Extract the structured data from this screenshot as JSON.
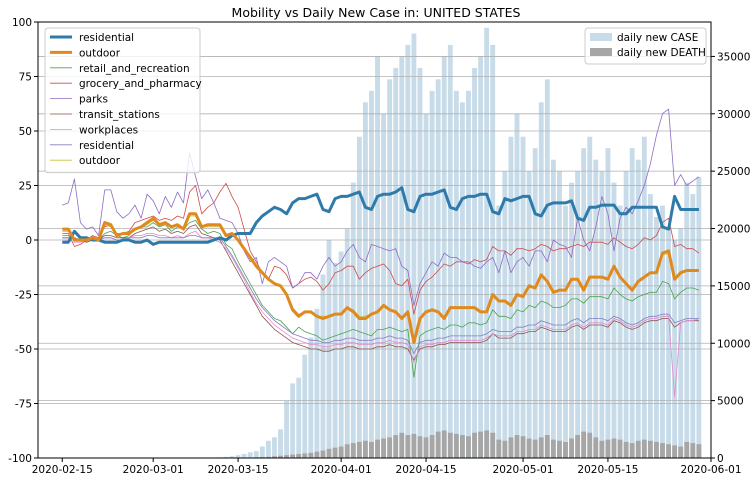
{
  "chart_data": {
    "type": "line",
    "title": "Mobility vs Daily New Case in: UNITED STATES",
    "xlabel": "",
    "ylabel_left": "",
    "ylabel_right": "",
    "x_start": "2020-02-15",
    "x_end": "2020-05-29",
    "xlim": [
      "2020-02-11",
      "2020-06-01"
    ],
    "x_tick_labels": [
      "2020-02-15",
      "2020-03-01",
      "2020-03-15",
      "2020-04-01",
      "2020-04-15",
      "2020-05-01",
      "2020-05-15",
      "2020-06-01"
    ],
    "y_left": {
      "ylim": [
        -100,
        100
      ],
      "ticks": [
        -100,
        -75,
        -50,
        -25,
        0,
        25,
        50,
        75,
        100
      ]
    },
    "y_right": {
      "ylim": [
        0,
        38000
      ],
      "ticks": [
        0,
        5000,
        10000,
        15000,
        20000,
        25000,
        30000,
        35000
      ]
    },
    "grid": true,
    "legend_left": {
      "placement": "top-left",
      "entries": [
        "residential",
        "outdoor",
        "retail_and_recreation",
        "grocery_and_pharmacy",
        "parks",
        "transit_stations",
        "workplaces",
        "residential",
        "outdoor"
      ]
    },
    "legend_right": {
      "placement": "top-right",
      "entries": [
        "daily new CASE",
        "daily new DEATH"
      ]
    },
    "colors": {
      "residential_bold": "#2e7bab",
      "outdoor_bold": "#e08a1e",
      "retail_and_recreation": "#4ca24c",
      "grocery_and_pharmacy": "#d04a4a",
      "parks": "#8e6cc4",
      "transit_stations": "#8c564b",
      "workplaces": "#e48ad0",
      "residential": "#7f7fbf",
      "outdoor": "#c8bf3a",
      "case": "#c7dbe9",
      "death": "#a6a6a6"
    },
    "series": [
      {
        "name": "residential",
        "axis": "left",
        "values": [
          -1,
          -1,
          4,
          1,
          1,
          0,
          0,
          -1,
          -1,
          -1,
          0,
          0,
          -1,
          -1,
          0,
          -2,
          -1,
          -1,
          -1,
          -1,
          -1,
          -1,
          -1,
          -1,
          -1,
          0,
          1,
          0,
          2,
          3,
          3,
          3,
          8,
          11,
          13,
          15,
          14,
          12,
          17,
          19,
          19,
          20,
          21,
          14,
          13,
          19,
          20,
          20,
          21,
          22,
          15,
          14,
          20,
          21,
          21,
          22,
          24,
          14,
          13,
          20,
          21,
          21,
          22,
          23,
          15,
          14,
          19,
          20,
          20,
          21,
          21,
          13,
          12,
          19,
          18,
          19,
          20,
          20,
          12,
          11,
          16,
          17,
          17,
          17,
          18,
          10,
          9,
          15,
          15,
          16,
          16,
          16,
          12,
          12,
          15,
          15,
          15,
          15,
          15,
          6,
          5,
          20,
          14,
          14,
          14,
          14
        ]
      },
      {
        "name": "outdoor",
        "axis": "left",
        "values": [
          5,
          5,
          0,
          0,
          0,
          1,
          0,
          8,
          7,
          2,
          3,
          3,
          5,
          6,
          8,
          10,
          7,
          8,
          6,
          7,
          5,
          12,
          12,
          6,
          7,
          7,
          7,
          2,
          3,
          0,
          -4,
          -8,
          -12,
          -15,
          -18,
          -20,
          -21,
          -25,
          -32,
          -35,
          -33,
          -33,
          -35,
          -36,
          -35,
          -34,
          -34,
          -31,
          -33,
          -36,
          -36,
          -34,
          -33,
          -30,
          -32,
          -33,
          -36,
          -33,
          -47,
          -36,
          -33,
          -32,
          -33,
          -36,
          -31,
          -31,
          -31,
          -31,
          -31,
          -33,
          -33,
          -25,
          -28,
          -28,
          -30,
          -25,
          -26,
          -21,
          -22,
          -16,
          -19,
          -24,
          -23,
          -23,
          -18,
          -18,
          -23,
          -17,
          -17,
          -17,
          -18,
          -12,
          -17,
          -20,
          -23,
          -19,
          -17,
          -15,
          -15,
          -6,
          -5,
          -18,
          -15,
          -14,
          -14,
          -14
        ]
      },
      {
        "name": "retail_and_recreation",
        "axis": "left",
        "values": [
          2,
          2,
          0,
          0,
          -1,
          0,
          0,
          3,
          4,
          2,
          1,
          2,
          5,
          6,
          6,
          8,
          6,
          7,
          4,
          6,
          5,
          8,
          9,
          5,
          3,
          4,
          3,
          -2,
          -4,
          -10,
          -15,
          -20,
          -25,
          -30,
          -33,
          -36,
          -37,
          -40,
          -43,
          -40,
          -42,
          -43,
          -44,
          -46,
          -45,
          -44,
          -43,
          -42,
          -41,
          -42,
          -43,
          -44,
          -41,
          -41,
          -40,
          -41,
          -42,
          -41,
          -63,
          -44,
          -42,
          -41,
          -40,
          -41,
          -39,
          -39,
          -40,
          -38,
          -38,
          -39,
          -38,
          -32,
          -35,
          -35,
          -36,
          -32,
          -33,
          -30,
          -31,
          -28,
          -29,
          -31,
          -31,
          -30,
          -27,
          -27,
          -29,
          -26,
          -26,
          -26,
          -27,
          -22,
          -25,
          -27,
          -28,
          -26,
          -25,
          -24,
          -24,
          -19,
          -20,
          -27,
          -24,
          -22,
          -22,
          -23
        ]
      },
      {
        "name": "grocery_and_pharmacy",
        "axis": "left",
        "values": [
          3,
          3,
          -3,
          -2,
          0,
          2,
          1,
          6,
          7,
          3,
          3,
          4,
          8,
          9,
          10,
          11,
          9,
          10,
          9,
          11,
          10,
          22,
          25,
          12,
          15,
          17,
          22,
          26,
          20,
          15,
          5,
          -5,
          -10,
          -15,
          -18,
          -12,
          -13,
          -16,
          -22,
          -20,
          -18,
          -17,
          -19,
          -23,
          -20,
          -15,
          -14,
          -12,
          -12,
          -18,
          -15,
          -13,
          -12,
          -11,
          -14,
          -20,
          -21,
          -18,
          -34,
          -23,
          -19,
          -17,
          -14,
          -11,
          -12,
          -10,
          -10,
          -11,
          -9,
          -10,
          -9,
          -3,
          -5,
          -5,
          -7,
          -4,
          -4,
          -5,
          -4,
          -2,
          -3,
          -5,
          -4,
          -4,
          -3,
          -2,
          -3,
          -1,
          -1,
          -1,
          -2,
          1,
          -1,
          -3,
          -4,
          -2,
          1,
          0,
          2,
          8,
          10,
          -3,
          -2,
          -4,
          -4,
          -6
        ]
      },
      {
        "name": "parks",
        "axis": "left",
        "values": [
          16,
          17,
          28,
          8,
          5,
          6,
          2,
          23,
          23,
          13,
          10,
          12,
          16,
          10,
          21,
          18,
          12,
          20,
          15,
          22,
          17,
          40,
          29,
          19,
          23,
          17,
          10,
          9,
          8,
          3,
          -5,
          -10,
          -8,
          -20,
          -10,
          -8,
          -10,
          -12,
          -22,
          -20,
          -15,
          -15,
          -18,
          -12,
          -8,
          -12,
          -10,
          -5,
          -2,
          -8,
          -10,
          -2,
          -3,
          -4,
          -5,
          -4,
          -12,
          -14,
          -30,
          -20,
          -15,
          -10,
          -12,
          -6,
          -8,
          -8,
          -10,
          -10,
          -12,
          -13,
          -10,
          -8,
          -15,
          -5,
          -15,
          -10,
          -8,
          -12,
          -5,
          -5,
          -10,
          0,
          -2,
          -3,
          -8,
          10,
          0,
          -5,
          6,
          20,
          12,
          -5,
          10,
          15,
          12,
          18,
          25,
          35,
          48,
          58,
          60,
          25,
          30,
          25,
          27,
          29
        ]
      },
      {
        "name": "transit_stations",
        "axis": "left",
        "values": [
          1,
          1,
          1,
          0,
          -1,
          0,
          0,
          2,
          2,
          1,
          1,
          1,
          3,
          4,
          5,
          6,
          4,
          5,
          3,
          4,
          3,
          6,
          7,
          3,
          2,
          1,
          0,
          -5,
          -10,
          -15,
          -20,
          -25,
          -30,
          -35,
          -38,
          -41,
          -43,
          -45,
          -47,
          -48,
          -49,
          -50,
          -50,
          -51,
          -51,
          -50,
          -50,
          -49,
          -49,
          -50,
          -50,
          -50,
          -49,
          -49,
          -48,
          -49,
          -49,
          -50,
          -55,
          -50,
          -49,
          -49,
          -48,
          -48,
          -47,
          -47,
          -47,
          -47,
          -47,
          -47,
          -46,
          -43,
          -45,
          -45,
          -45,
          -43,
          -43,
          -42,
          -42,
          -40,
          -41,
          -42,
          -42,
          -42,
          -40,
          -39,
          -41,
          -39,
          -39,
          -39,
          -40,
          -37,
          -38,
          -40,
          -41,
          -40,
          -38,
          -37,
          -37,
          -36,
          -36,
          -40,
          -38,
          -37,
          -37,
          -37
        ]
      },
      {
        "name": "workplaces",
        "axis": "left",
        "values": [
          0,
          0,
          -1,
          -1,
          0,
          0,
          0,
          1,
          1,
          0,
          0,
          1,
          2,
          2,
          3,
          3,
          2,
          2,
          1,
          2,
          1,
          3,
          4,
          1,
          1,
          0,
          -1,
          -4,
          -8,
          -13,
          -18,
          -24,
          -29,
          -33,
          -36,
          -39,
          -41,
          -43,
          -45,
          -46,
          -47,
          -48,
          -48,
          -49,
          -49,
          -48,
          -48,
          -47,
          -47,
          -48,
          -48,
          -48,
          -47,
          -47,
          -46,
          -47,
          -47,
          -48,
          -56,
          -49,
          -48,
          -48,
          -47,
          -47,
          -46,
          -46,
          -46,
          -46,
          -46,
          -46,
          -45,
          -43,
          -44,
          -44,
          -44,
          -42,
          -42,
          -41,
          -41,
          -39,
          -40,
          -41,
          -41,
          -41,
          -39,
          -38,
          -40,
          -38,
          -38,
          -38,
          -39,
          -36,
          -37,
          -39,
          -40,
          -39,
          -37,
          -36,
          -36,
          -35,
          -35,
          -72,
          -38,
          -37,
          -37,
          -36
        ]
      },
      {
        "name": "residential",
        "axis": "left",
        "values": [
          1,
          1,
          1,
          0,
          0,
          0,
          0,
          1,
          1,
          0,
          0,
          1,
          1,
          1,
          2,
          2,
          1,
          1,
          1,
          1,
          1,
          2,
          2,
          1,
          1,
          1,
          1,
          -3,
          -7,
          -12,
          -17,
          -22,
          -27,
          -31,
          -34,
          -37,
          -39,
          -41,
          -43,
          -44,
          -45,
          -46,
          -46,
          -47,
          -47,
          -46,
          -46,
          -45,
          -45,
          -46,
          -46,
          -46,
          -45,
          -45,
          -44,
          -45,
          -45,
          -46,
          -52,
          -47,
          -46,
          -46,
          -45,
          -45,
          -44,
          -44,
          -44,
          -44,
          -44,
          -44,
          -43,
          -41,
          -42,
          -42,
          -42,
          -40,
          -40,
          -39,
          -39,
          -37,
          -38,
          -39,
          -39,
          -39,
          -37,
          -36,
          -38,
          -36,
          -36,
          -36,
          -37,
          -35,
          -36,
          -38,
          -39,
          -38,
          -36,
          -35,
          -35,
          -34,
          -34,
          -38,
          -37,
          -36,
          -36,
          -36
        ]
      },
      {
        "name": "outdoor",
        "axis": "left",
        "values": [
          4,
          4,
          0,
          0,
          0,
          1,
          0,
          7,
          6,
          2,
          3,
          3,
          5,
          6,
          7,
          9,
          7,
          7,
          6,
          7,
          5,
          11,
          11,
          6,
          6,
          6,
          6,
          2,
          2,
          0,
          -4,
          -8,
          -12,
          -15,
          -18,
          -20,
          -21,
          -25,
          -31,
          -34,
          -33,
          -33,
          -35,
          -35,
          -35,
          -34,
          -34,
          -31,
          -32,
          -35,
          -35,
          -34,
          -33,
          -30,
          -32,
          -33,
          -35,
          -33,
          -46,
          -36,
          -33,
          -32,
          -33,
          -35,
          -31,
          -31,
          -31,
          -31,
          -31,
          -33,
          -33,
          -25,
          -28,
          -28,
          -30,
          -25,
          -26,
          -21,
          -22,
          -16,
          -19,
          -24,
          -23,
          -23,
          -18,
          -18,
          -23,
          -17,
          -17,
          -17,
          -18,
          -12,
          -17,
          -20,
          -23,
          -19,
          -17,
          -15,
          -15,
          -7,
          -6,
          -18,
          -15,
          -14,
          -14,
          -14
        ]
      }
    ],
    "bars": [
      {
        "name": "daily new CASE",
        "axis": "right",
        "values": [
          0,
          0,
          0,
          0,
          0,
          0,
          0,
          0,
          0,
          0,
          0,
          0,
          0,
          0,
          0,
          0,
          0,
          0,
          0,
          0,
          0,
          0,
          0,
          10,
          20,
          40,
          60,
          100,
          150,
          250,
          350,
          500,
          600,
          1000,
          1500,
          1800,
          2500,
          5000,
          6500,
          7000,
          9000,
          10500,
          13000,
          16000,
          19000,
          17000,
          18000,
          20000,
          24000,
          28000,
          31000,
          32000,
          35000,
          30000,
          33000,
          34000,
          35000,
          36000,
          37000,
          34000,
          30000,
          32000,
          33000,
          35000,
          36000,
          32000,
          31000,
          32000,
          34000,
          35000,
          37500,
          36000,
          22000,
          25000,
          28000,
          30000,
          28000,
          25000,
          27000,
          31000,
          33000,
          26000,
          25000,
          22000,
          24000,
          25000,
          27000,
          28000,
          26000,
          25000,
          27000,
          24000,
          22000,
          25000,
          27000,
          26000,
          28000,
          23000,
          21000,
          22000,
          20000,
          19000,
          20000,
          24000,
          23000,
          24500
        ]
      },
      {
        "name": "daily new DEATH",
        "axis": "right",
        "values": [
          0,
          0,
          0,
          0,
          0,
          0,
          0,
          0,
          0,
          0,
          0,
          0,
          0,
          0,
          0,
          0,
          0,
          0,
          0,
          0,
          0,
          0,
          0,
          0,
          0,
          0,
          0,
          0,
          10,
          20,
          30,
          40,
          60,
          80,
          100,
          150,
          200,
          250,
          300,
          350,
          400,
          450,
          550,
          650,
          800,
          900,
          1000,
          1200,
          1300,
          1400,
          1500,
          1400,
          1600,
          1700,
          1800,
          2000,
          2200,
          2000,
          2100,
          1900,
          1800,
          2000,
          2300,
          2400,
          2200,
          2100,
          2000,
          1900,
          2200,
          2300,
          2400,
          2200,
          1600,
          1500,
          1800,
          2000,
          1900,
          1700,
          1600,
          1800,
          2000,
          1600,
          1500,
          1400,
          1700,
          2000,
          2300,
          2200,
          1800,
          1500,
          1600,
          1700,
          1600,
          1400,
          1300,
          1500,
          1600,
          1500,
          1400,
          1300,
          1200,
          1100,
          1000,
          1400,
          1300,
          1200
        ]
      }
    ]
  }
}
